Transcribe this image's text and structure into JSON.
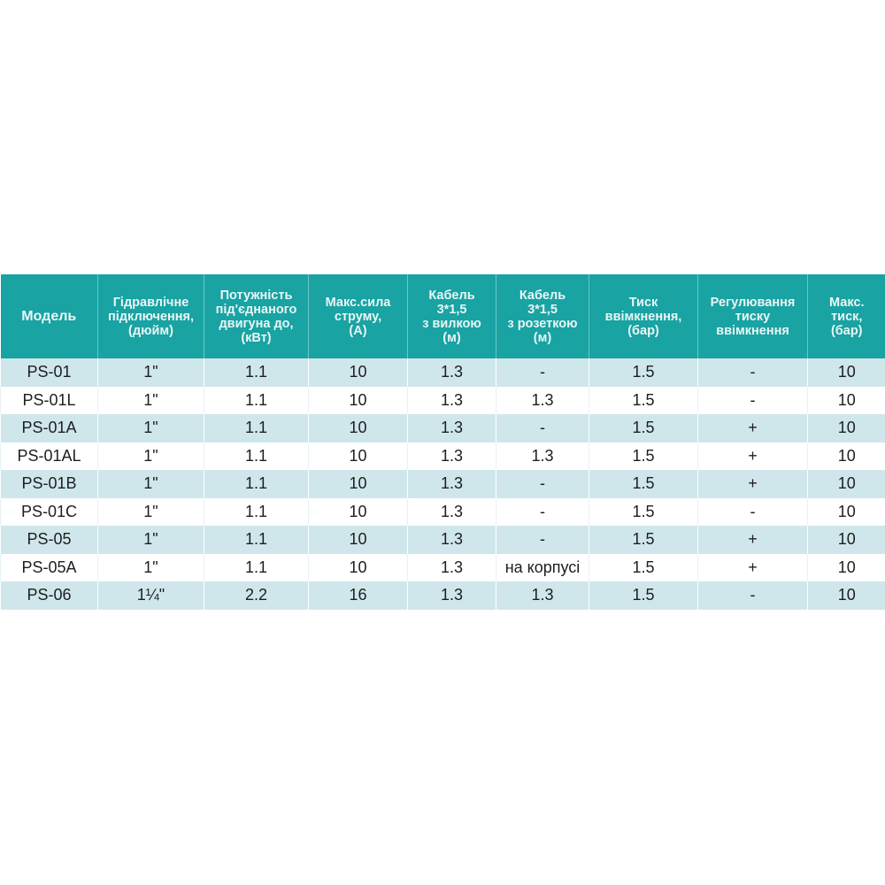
{
  "table": {
    "headers": [
      [
        "Модель"
      ],
      [
        "Гідравлічне",
        "підключення,",
        "(дюйм)"
      ],
      [
        "Потужність",
        "під'єднаного",
        "двигуна до,",
        "(кВт)"
      ],
      [
        "Макс.сила",
        "струму,",
        "(А)"
      ],
      [
        "Кабель",
        "3*1,5",
        "з вилкою",
        "(м)"
      ],
      [
        "Кабель",
        "3*1,5",
        "з розеткою",
        "(м)"
      ],
      [
        "Тиск",
        "ввімкнення,",
        "(бар)"
      ],
      [
        "Регулювання",
        "тиску",
        "ввімкнення"
      ],
      [
        "Макс.",
        "тиск,",
        "(бар)"
      ]
    ],
    "rows": [
      [
        "PS-01",
        "1\"",
        "1.1",
        "10",
        "1.3",
        "-",
        "1.5",
        "-",
        "10"
      ],
      [
        "PS-01L",
        "1\"",
        "1.1",
        "10",
        "1.3",
        "1.3",
        "1.5",
        "-",
        "10"
      ],
      [
        "PS-01A",
        "1\"",
        "1.1",
        "10",
        "1.3",
        "-",
        "1.5",
        "+",
        "10"
      ],
      [
        "PS-01AL",
        "1\"",
        "1.1",
        "10",
        "1.3",
        "1.3",
        "1.5",
        "+",
        "10"
      ],
      [
        "PS-01B",
        "1\"",
        "1.1",
        "10",
        "1.3",
        "-",
        "1.5",
        "+",
        "10"
      ],
      [
        "PS-01C",
        "1\"",
        "1.1",
        "10",
        "1.3",
        "-",
        "1.5",
        "-",
        "10"
      ],
      [
        "PS-05",
        "1\"",
        "1.1",
        "10",
        "1.3",
        "-",
        "1.5",
        "+",
        "10"
      ],
      [
        "PS-05A",
        "1\"",
        "1.1",
        "10",
        "1.3",
        "на корпусі",
        "1.5",
        "+",
        "10"
      ],
      [
        "PS-06",
        "1¼\"",
        "2.2",
        "16",
        "1.3",
        "1.3",
        "1.5",
        "-",
        "10"
      ]
    ]
  },
  "colors": {
    "header_bg": "#19a3a3",
    "stripe": "#cfe7ea"
  }
}
